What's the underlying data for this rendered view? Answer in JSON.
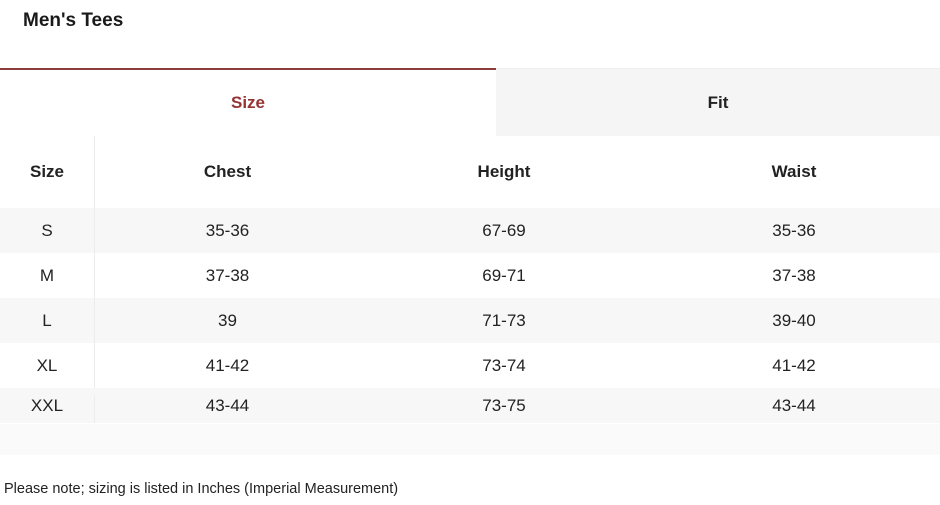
{
  "title": "Men's Tees",
  "tabs": [
    {
      "label": "Size",
      "active": true
    },
    {
      "label": "Fit",
      "active": false
    }
  ],
  "accent_color": "#933333",
  "table": {
    "headers": [
      "Size",
      "Chest",
      "Height",
      "Waist"
    ],
    "rows": [
      [
        "S",
        "35-36",
        "67-69",
        "35-36"
      ],
      [
        "M",
        "37-38",
        "69-71",
        "37-38"
      ],
      [
        "L",
        "39",
        "71-73",
        "39-40"
      ],
      [
        "XL",
        "41-42",
        "73-74",
        "41-42"
      ],
      [
        "XXL",
        "43-44",
        "73-75",
        "43-44"
      ]
    ]
  },
  "note": "Please note; sizing is listed in Inches (Imperial Measurement)"
}
